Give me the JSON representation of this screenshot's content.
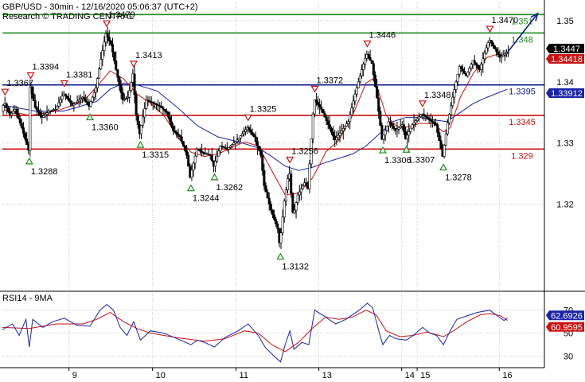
{
  "header": {
    "symbol_line": "GBP/USD - 30min - 12/16/2020 05:06:37 (UTC+2)",
    "source_line": "Research © TRADING CENTRAL"
  },
  "colors": {
    "candles": "#000000",
    "ma_fast": "#cc1111",
    "ma_slow": "#1a23a8",
    "resistance": "#1d8a1d",
    "pivot": "#0d1a8c",
    "support": "#cc1111",
    "arrow": "#0d1a8c",
    "rsi": "#1a23a8",
    "rsi_ma": "#cc1111",
    "grid": "#c8c8c8"
  },
  "chart_data": [
    {
      "type": "candlestick",
      "title": "GBP/USD - 30min - 12/16/2020 05:06:37 (UTC+2)",
      "ylim": [
        1.306,
        1.353
      ],
      "y_ticks": [
        1.32,
        1.33,
        1.34,
        1.35
      ],
      "y_tick_labels": [
        "1.32",
        "1.33",
        "1.34",
        "1.35"
      ],
      "x_tick_labels": [
        "9",
        "10",
        "11",
        "13",
        "14",
        "15",
        "16"
      ],
      "grid": true,
      "levels": [
        {
          "value": 1.351,
          "label": "1.351",
          "role": "resistance"
        },
        {
          "value": 1.348,
          "label": "1.348",
          "role": "resistance"
        },
        {
          "value": 1.3395,
          "label": "1.3395",
          "role": "pivot"
        },
        {
          "value": 1.3345,
          "label": "1.3345",
          "role": "support"
        },
        {
          "value": 1.329,
          "label": "1.329",
          "role": "support"
        }
      ],
      "price_badges": [
        {
          "value": 1.3447,
          "label": "1.3447",
          "style": "current"
        },
        {
          "value": 1.34418,
          "label": "1.34418",
          "style": "ma_fast"
        },
        {
          "value": 1.33912,
          "label": "1.33912",
          "style": "ma_slow"
        }
      ],
      "annotations": [
        {
          "t": 0.4,
          "value": 1.3367,
          "label": "1.3367",
          "marker": "high"
        },
        {
          "t": 4.2,
          "value": 1.3394,
          "label": "1.3394",
          "marker": "high"
        },
        {
          "t": 9.2,
          "value": 1.3381,
          "label": "1.3381",
          "marker": "high"
        },
        {
          "t": 15.5,
          "value": 1.3479,
          "label": "1.3479",
          "marker": "high"
        },
        {
          "t": 19.5,
          "value": 1.3413,
          "label": "1.3413",
          "marker": "high"
        },
        {
          "t": 36.5,
          "value": 1.3325,
          "label": "1.3325",
          "marker": "high"
        },
        {
          "t": 42.7,
          "value": 1.3256,
          "label": "1.3256",
          "marker": "high"
        },
        {
          "t": 46.4,
          "value": 1.3372,
          "label": "1.3372",
          "marker": "high"
        },
        {
          "t": 54.2,
          "value": 1.3446,
          "label": "1.3446",
          "marker": "high"
        },
        {
          "t": 62.4,
          "value": 1.3348,
          "label": "1.3348",
          "marker": "high"
        },
        {
          "t": 72.4,
          "value": 1.347,
          "label": "1.3470",
          "marker": "high"
        },
        {
          "t": 4.0,
          "value": 1.3288,
          "label": "1.3288",
          "marker": "low"
        },
        {
          "t": 13.0,
          "value": 1.336,
          "label": "1.3360",
          "marker": "low"
        },
        {
          "t": 20.5,
          "value": 1.3315,
          "label": "1.3315",
          "marker": "low"
        },
        {
          "t": 28.0,
          "value": 1.3244,
          "label": "1.3244",
          "marker": "low"
        },
        {
          "t": 31.5,
          "value": 1.3262,
          "label": "1.3262",
          "marker": "low"
        },
        {
          "t": 41.3,
          "value": 1.3132,
          "label": "1.3132",
          "marker": "low"
        },
        {
          "t": 56.5,
          "value": 1.3306,
          "label": "1.3306",
          "marker": "low"
        },
        {
          "t": 60.0,
          "value": 1.3307,
          "label": "1.3307",
          "marker": "low"
        },
        {
          "t": 65.5,
          "value": 1.3278,
          "label": "1.3278",
          "marker": "low"
        }
      ],
      "x_ticks": [
        {
          "t": 9.9,
          "label": "9"
        },
        {
          "t": 22.3,
          "label": "10"
        },
        {
          "t": 34.7,
          "label": "11"
        },
        {
          "t": 47.0,
          "label": "13"
        },
        {
          "t": 59.3,
          "label": "14"
        },
        {
          "t": 61.6,
          "label": "15"
        },
        {
          "t": 73.8,
          "label": "16"
        }
      ],
      "price_path": [
        [
          0,
          1.3352
        ],
        [
          0.4,
          1.3367
        ],
        [
          1.2,
          1.3345
        ],
        [
          2.0,
          1.3355
        ],
        [
          3.0,
          1.3325
        ],
        [
          4.0,
          1.3288
        ],
        [
          4.2,
          1.3394
        ],
        [
          5.0,
          1.3358
        ],
        [
          6.0,
          1.3342
        ],
        [
          7.0,
          1.3352
        ],
        [
          8.0,
          1.3355
        ],
        [
          9.2,
          1.3381
        ],
        [
          10.5,
          1.3362
        ],
        [
          12.0,
          1.3375
        ],
        [
          13.0,
          1.336
        ],
        [
          14.0,
          1.339
        ],
        [
          14.8,
          1.344
        ],
        [
          15.5,
          1.3479
        ],
        [
          16.3,
          1.346
        ],
        [
          17.0,
          1.342
        ],
        [
          18.0,
          1.337
        ],
        [
          18.8,
          1.3375
        ],
        [
          19.5,
          1.3413
        ],
        [
          20.0,
          1.3345
        ],
        [
          20.5,
          1.3315
        ],
        [
          21.5,
          1.337
        ],
        [
          22.5,
          1.3365
        ],
        [
          23.5,
          1.336
        ],
        [
          24.5,
          1.335
        ],
        [
          25.5,
          1.332
        ],
        [
          26.5,
          1.331
        ],
        [
          27.5,
          1.328
        ],
        [
          28.0,
          1.3244
        ],
        [
          29.0,
          1.329
        ],
        [
          30.0,
          1.3283
        ],
        [
          31.0,
          1.328
        ],
        [
          31.5,
          1.3262
        ],
        [
          32.5,
          1.3295
        ],
        [
          33.5,
          1.329
        ],
        [
          35.0,
          1.3305
        ],
        [
          36.5,
          1.3325
        ],
        [
          37.5,
          1.331
        ],
        [
          38.5,
          1.328
        ],
        [
          39.0,
          1.323
        ],
        [
          40.0,
          1.319
        ],
        [
          41.0,
          1.316
        ],
        [
          41.3,
          1.3132
        ],
        [
          42.0,
          1.3205
        ],
        [
          42.7,
          1.3256
        ],
        [
          43.3,
          1.318
        ],
        [
          44.0,
          1.3215
        ],
        [
          45.0,
          1.3235
        ],
        [
          45.5,
          1.3225
        ],
        [
          46.4,
          1.3372
        ],
        [
          47.5,
          1.3355
        ],
        [
          48.5,
          1.333
        ],
        [
          49.5,
          1.3305
        ],
        [
          50.5,
          1.332
        ],
        [
          51.5,
          1.3335
        ],
        [
          52.5,
          1.338
        ],
        [
          53.5,
          1.342
        ],
        [
          54.2,
          1.3446
        ],
        [
          55.0,
          1.343
        ],
        [
          55.8,
          1.337
        ],
        [
          56.5,
          1.3306
        ],
        [
          57.5,
          1.3335
        ],
        [
          58.5,
          1.332
        ],
        [
          59.5,
          1.333
        ],
        [
          60.0,
          1.3307
        ],
        [
          61.0,
          1.333
        ],
        [
          62.4,
          1.3348
        ],
        [
          63.5,
          1.3338
        ],
        [
          64.5,
          1.333
        ],
        [
          65.5,
          1.3278
        ],
        [
          66.2,
          1.333
        ],
        [
          67.0,
          1.3375
        ],
        [
          68.0,
          1.3425
        ],
        [
          69.0,
          1.341
        ],
        [
          70.0,
          1.3435
        ],
        [
          71.0,
          1.342
        ],
        [
          72.4,
          1.347
        ],
        [
          73.2,
          1.3455
        ],
        [
          74.0,
          1.344
        ],
        [
          75.0,
          1.3448
        ]
      ],
      "ma_fast": [
        [
          0,
          1.3355
        ],
        [
          4,
          1.3345
        ],
        [
          8,
          1.3352
        ],
        [
          12,
          1.3368
        ],
        [
          14,
          1.3392
        ],
        [
          16,
          1.3418
        ],
        [
          18,
          1.3405
        ],
        [
          20,
          1.338
        ],
        [
          22,
          1.3365
        ],
        [
          24,
          1.3345
        ],
        [
          26,
          1.331
        ],
        [
          28,
          1.3285
        ],
        [
          30,
          1.3278
        ],
        [
          32,
          1.3282
        ],
        [
          34,
          1.3292
        ],
        [
          36,
          1.3302
        ],
        [
          38,
          1.3295
        ],
        [
          40,
          1.3255
        ],
        [
          42,
          1.3215
        ],
        [
          44,
          1.3218
        ],
        [
          46,
          1.3242
        ],
        [
          47,
          1.3262
        ],
        [
          48,
          1.3285
        ],
        [
          50,
          1.3305
        ],
        [
          52,
          1.3345
        ],
        [
          54,
          1.3398
        ],
        [
          55,
          1.3405
        ],
        [
          56,
          1.338
        ],
        [
          57,
          1.3345
        ],
        [
          58.5,
          1.3328
        ],
        [
          60,
          1.3326
        ],
        [
          62,
          1.3332
        ],
        [
          64,
          1.3332
        ],
        [
          65.5,
          1.3318
        ],
        [
          66.5,
          1.3325
        ],
        [
          68,
          1.3375
        ],
        [
          70,
          1.3415
        ],
        [
          72,
          1.344
        ],
        [
          73.5,
          1.3445
        ],
        [
          75,
          1.3442
        ]
      ],
      "ma_slow": [
        [
          0,
          1.3362
        ],
        [
          5,
          1.3352
        ],
        [
          9,
          1.3352
        ],
        [
          11,
          1.3358
        ],
        [
          14,
          1.3368
        ],
        [
          16,
          1.3388
        ],
        [
          18,
          1.3398
        ],
        [
          20,
          1.3395
        ],
        [
          23,
          1.3385
        ],
        [
          26,
          1.3358
        ],
        [
          29,
          1.3328
        ],
        [
          32,
          1.331
        ],
        [
          35,
          1.3302
        ],
        [
          38,
          1.3292
        ],
        [
          40,
          1.3278
        ],
        [
          42,
          1.3262
        ],
        [
          44,
          1.3255
        ],
        [
          46,
          1.326
        ],
        [
          48,
          1.3268
        ],
        [
          50,
          1.3275
        ],
        [
          52,
          1.3282
        ],
        [
          54,
          1.3295
        ],
        [
          56,
          1.3315
        ],
        [
          58,
          1.3335
        ],
        [
          60,
          1.3342
        ],
        [
          62,
          1.3342
        ],
        [
          64,
          1.3338
        ],
        [
          66,
          1.3335
        ],
        [
          68,
          1.335
        ],
        [
          70,
          1.3365
        ],
        [
          72,
          1.3375
        ],
        [
          75,
          1.3388
        ]
      ],
      "forecast_arrow": [
        [
          75,
          1.3448
        ],
        [
          79.5,
          1.3512
        ]
      ]
    },
    {
      "type": "line",
      "title": "RSI14 - 9MA",
      "ylim": [
        20,
        85
      ],
      "y_ticks": [
        30,
        50,
        70
      ],
      "y_tick_labels": [
        "30",
        "50",
        "70"
      ],
      "value_badges": [
        {
          "value": 62.6926,
          "label": "62.6926",
          "series": "rsi"
        },
        {
          "value": 60.9595,
          "label": "60.9595",
          "series": "rsi_ma"
        }
      ],
      "rsi": [
        [
          0,
          53
        ],
        [
          1.5,
          58
        ],
        [
          2.5,
          48
        ],
        [
          3.5,
          62
        ],
        [
          4,
          38
        ],
        [
          4.5,
          62
        ],
        [
          6,
          55
        ],
        [
          7.5,
          60
        ],
        [
          9.2,
          63
        ],
        [
          11,
          57
        ],
        [
          13,
          56
        ],
        [
          14.5,
          70
        ],
        [
          15.5,
          75
        ],
        [
          16.5,
          70
        ],
        [
          17.5,
          55
        ],
        [
          18.5,
          48
        ],
        [
          19.5,
          60
        ],
        [
          20.5,
          44
        ],
        [
          22,
          52
        ],
        [
          24,
          50
        ],
        [
          26,
          45
        ],
        [
          28,
          40
        ],
        [
          29,
          44
        ],
        [
          30,
          42
        ],
        [
          31.5,
          38
        ],
        [
          33,
          46
        ],
        [
          35,
          52
        ],
        [
          36.5,
          58
        ],
        [
          38,
          48
        ],
        [
          39,
          38
        ],
        [
          40,
          32
        ],
        [
          41.3,
          25
        ],
        [
          42,
          40
        ],
        [
          42.7,
          52
        ],
        [
          43.3,
          36
        ],
        [
          44.5,
          42
        ],
        [
          45.5,
          40
        ],
        [
          46.4,
          70
        ],
        [
          48,
          64
        ],
        [
          49.5,
          58
        ],
        [
          51,
          62
        ],
        [
          53,
          70
        ],
        [
          54.2,
          76
        ],
        [
          55,
          72
        ],
        [
          56,
          50
        ],
        [
          56.5,
          40
        ],
        [
          57.5,
          48
        ],
        [
          58.5,
          45
        ],
        [
          60,
          44
        ],
        [
          61,
          48
        ],
        [
          62.4,
          55
        ],
        [
          63.5,
          50
        ],
        [
          64.5,
          48
        ],
        [
          65.5,
          40
        ],
        [
          66.5,
          52
        ],
        [
          67.5,
          62
        ],
        [
          69,
          65
        ],
        [
          70.5,
          68
        ],
        [
          72.4,
          70
        ],
        [
          73.5,
          65
        ],
        [
          74.5,
          61
        ],
        [
          75,
          63
        ]
      ],
      "rsi_ma": [
        [
          0,
          55
        ],
        [
          4,
          54
        ],
        [
          8,
          58
        ],
        [
          12,
          58
        ],
        [
          14,
          62
        ],
        [
          16,
          68
        ],
        [
          18,
          60
        ],
        [
          20,
          54
        ],
        [
          22,
          50
        ],
        [
          26,
          46
        ],
        [
          30,
          43
        ],
        [
          33,
          45
        ],
        [
          36,
          52
        ],
        [
          38,
          50
        ],
        [
          40,
          40
        ],
        [
          42,
          34
        ],
        [
          44,
          42
        ],
        [
          46,
          54
        ],
        [
          48,
          64
        ],
        [
          50,
          62
        ],
        [
          52,
          64
        ],
        [
          54,
          70
        ],
        [
          55.5,
          66
        ],
        [
          57,
          52
        ],
        [
          59,
          47
        ],
        [
          61,
          48
        ],
        [
          63,
          51
        ],
        [
          65.5,
          47
        ],
        [
          67,
          52
        ],
        [
          69,
          60
        ],
        [
          71,
          66
        ],
        [
          72.5,
          67
        ],
        [
          74,
          65
        ],
        [
          75,
          61
        ]
      ]
    }
  ]
}
